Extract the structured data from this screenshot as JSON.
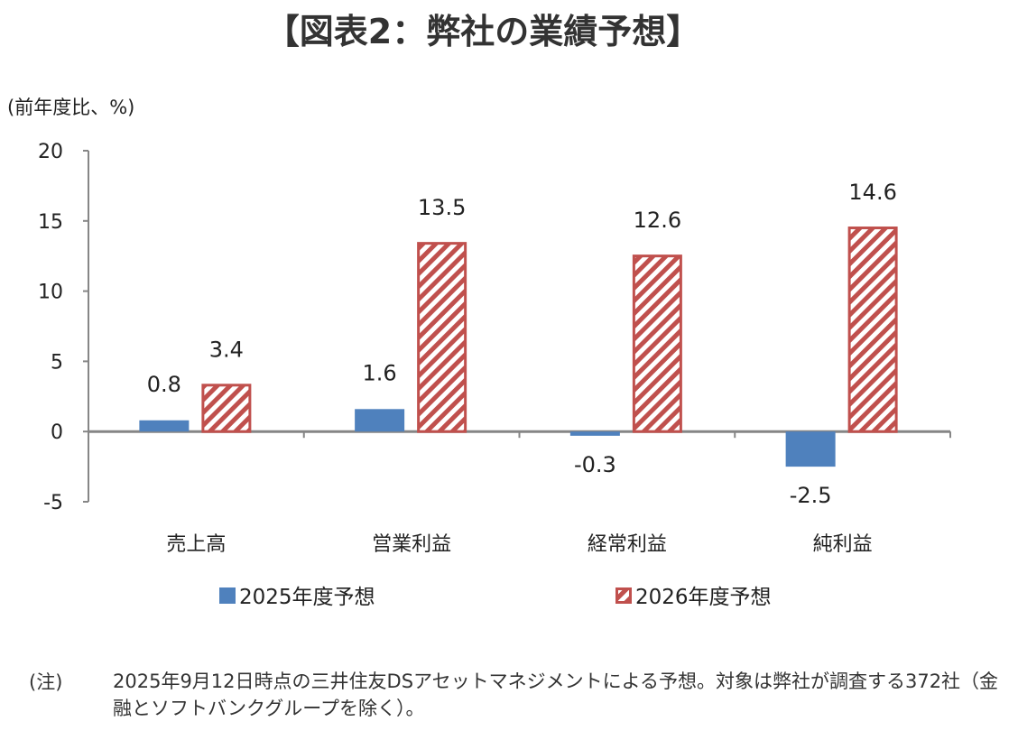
{
  "chart_data": {
    "type": "bar",
    "title": "【図表2：弊社の業績予想】",
    "ylabel": "(前年度比、%)",
    "xlabel": "",
    "categories": [
      "売上高",
      "営業利益",
      "経常利益",
      "純利益"
    ],
    "series": [
      {
        "name": "2025年度予想",
        "values": [
          0.8,
          1.6,
          -0.3,
          -2.5
        ],
        "color": "#4f81bd"
      },
      {
        "name": "2026年度予想",
        "values": [
          3.4,
          13.5,
          12.6,
          14.6
        ],
        "color": "#c0504d"
      }
    ],
    "ylim": [
      -5,
      20
    ],
    "yticks": [
      -5,
      0,
      5,
      10,
      15,
      20
    ],
    "legend": "bottom",
    "grid": false
  },
  "note": {
    "label": "(注)",
    "text": "2025年9月12日時点の三井住友DSアセットマネジメントによる予想。対象は弊社が調査する372社（金融とソフトバンクグループを除く）。"
  }
}
